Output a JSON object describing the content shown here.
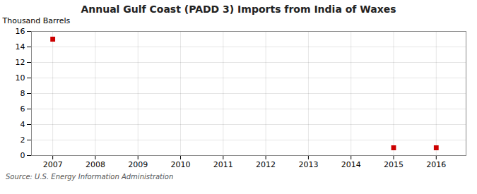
{
  "chart_data": {
    "type": "scatter",
    "title": "Annual Gulf Coast (PADD 3) Imports from India of Waxes",
    "y_label": "Thousand Barrels",
    "annotations": [
      "Source: U.S. Energy Information Administration"
    ],
    "x": [
      2007,
      2008,
      2009,
      2010,
      2011,
      2012,
      2013,
      2014,
      2015,
      2016
    ],
    "values": [
      15,
      null,
      null,
      null,
      null,
      null,
      null,
      null,
      1,
      1
    ],
    "color": "#cc0000",
    "marker": "square",
    "xlim": [
      2006.5,
      2016.7
    ],
    "xticks": [
      2007,
      2008,
      2009,
      2010,
      2011,
      2012,
      2013,
      2014,
      2015,
      2016
    ],
    "ylim": [
      0,
      16
    ],
    "yticks": [
      0,
      2,
      4,
      6,
      8,
      10,
      12,
      14,
      16
    ],
    "grid": true
  }
}
